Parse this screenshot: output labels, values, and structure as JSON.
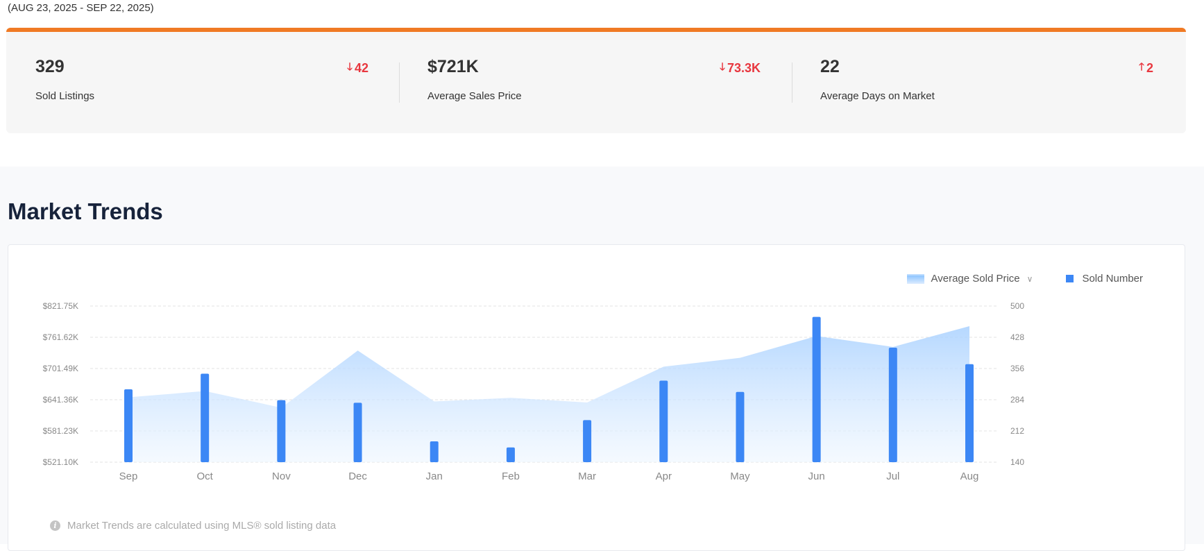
{
  "header": {
    "date_range": "(AUG 23, 2025 - SEP 22, 2025)"
  },
  "summary": {
    "accent_color": "#f07a24",
    "down_color": "#e8373f",
    "stats": [
      {
        "value": "329",
        "label": "Sold Listings",
        "change": "42",
        "direction": "down"
      },
      {
        "value": "$721K",
        "label": "Average Sales Price",
        "change": "73.3K",
        "direction": "down"
      },
      {
        "value": "22",
        "label": "Average Days on Market",
        "change": "2",
        "direction": "up"
      }
    ]
  },
  "trends": {
    "title": "Market Trends",
    "legend": {
      "area_label": "Average Sold Price",
      "bar_label": "Sold Number"
    },
    "footnote": "Market Trends are calculated using MLS® sold listing data"
  },
  "chart_data": {
    "type": "bar",
    "categories": [
      "Sep",
      "Oct",
      "Nov",
      "Dec",
      "Jan",
      "Feb",
      "Mar",
      "Apr",
      "May",
      "Jun",
      "Jul",
      "Aug"
    ],
    "left_axis_ticks": [
      "$821.75K",
      "$761.62K",
      "$701.49K",
      "$641.36K",
      "$581.23K",
      "$521.10K"
    ],
    "right_axis_ticks": [
      "500",
      "428",
      "356",
      "284",
      "212",
      "140"
    ],
    "left_ylim": [
      521.1,
      821.75
    ],
    "right_ylim": [
      140,
      500
    ],
    "series": [
      {
        "name": "Average Sold Price",
        "type": "area",
        "axis": "left",
        "unit": "K",
        "values": [
          646,
          658,
          626,
          736,
          638,
          645,
          636,
          705,
          722,
          764,
          743,
          783
        ]
      },
      {
        "name": "Sold Number",
        "type": "bar",
        "axis": "right",
        "values": [
          308,
          344,
          283,
          277,
          188,
          174,
          237,
          328,
          302,
          475,
          404,
          366
        ]
      }
    ],
    "colors": {
      "bar": "#3c87f5",
      "area_top": "#a9d1ff",
      "area_bottom": "#eef6ff",
      "grid": "#e3e3e3"
    },
    "grid": true,
    "legend_position": "top-right"
  }
}
